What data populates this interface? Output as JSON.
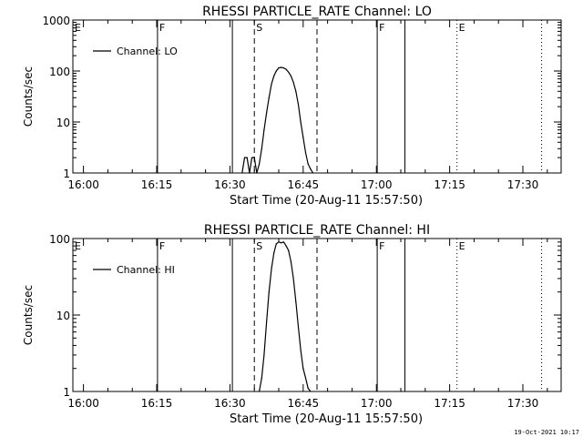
{
  "footer_date": "19-Oct-2021 10:17",
  "chart_data": [
    {
      "type": "line",
      "title": "RHESSI PARTICLE_RATE Channel: LO",
      "xlabel": "Start Time (20-Aug-11 15:57:50)",
      "ylabel": "Counts/sec",
      "xlim": [
        "15:57:50",
        "17:37:50"
      ],
      "ylim": [
        1,
        1000
      ],
      "yscale": "log",
      "x_ticks": [
        "16:00",
        "16:15",
        "16:30",
        "16:45",
        "17:00",
        "17:15",
        "17:30"
      ],
      "y_ticks": [
        "1",
        "10",
        "100",
        "1000"
      ],
      "legend_location": "top-left",
      "series": [
        {
          "name": "Channel: LO",
          "x": [
            "16:32:30",
            "16:33:00",
            "16:33:30",
            "16:34:00",
            "16:34:30",
            "16:35:00",
            "16:35:30",
            "16:36:00",
            "16:36:30",
            "16:37:00",
            "16:37:30",
            "16:38:00",
            "16:38:30",
            "16:39:00",
            "16:39:30",
            "16:40:00",
            "16:40:30",
            "16:41:00",
            "16:41:30",
            "16:42:00",
            "16:42:30",
            "16:43:00",
            "16:43:30",
            "16:44:00",
            "16:44:30",
            "16:45:00",
            "16:45:30",
            "16:46:00",
            "16:46:30",
            "16:47:00"
          ],
          "values": [
            1,
            2,
            2,
            1,
            2,
            2,
            1,
            1.5,
            3,
            7,
            15,
            30,
            55,
            80,
            100,
            115,
            118,
            115,
            108,
            95,
            80,
            60,
            40,
            22,
            10,
            5,
            2.5,
            1.5,
            1.2,
            1
          ]
        }
      ],
      "markers": [
        {
          "label": "E",
          "time": "15:57:50",
          "style": "none"
        },
        {
          "label": "F",
          "time": "16:15:10",
          "style": "solid"
        },
        {
          "label": "",
          "time": "16:30:30",
          "style": "solid"
        },
        {
          "label": "S",
          "time": "16:35:00",
          "style": "dashed"
        },
        {
          "label": "",
          "time": "16:47:50",
          "style": "dashed"
        },
        {
          "label": "F",
          "time": "17:00:10",
          "style": "solid"
        },
        {
          "label": "",
          "time": "17:05:50",
          "style": "solid"
        },
        {
          "label": "E",
          "time": "17:16:30",
          "style": "dotted"
        },
        {
          "label": "",
          "time": "17:33:50",
          "style": "dotted"
        }
      ]
    },
    {
      "type": "line",
      "title": "RHESSI PARTICLE_RATE Channel: HI",
      "xlabel": "Start Time (20-Aug-11 15:57:50)",
      "ylabel": "Counts/sec",
      "xlim": [
        "15:57:50",
        "17:37:50"
      ],
      "ylim": [
        1,
        100
      ],
      "yscale": "log",
      "x_ticks": [
        "16:00",
        "16:15",
        "16:30",
        "16:45",
        "17:00",
        "17:15",
        "17:30"
      ],
      "y_ticks": [
        "1",
        "10",
        "100"
      ],
      "legend_location": "top-left",
      "series": [
        {
          "name": "Channel: HI",
          "x": [
            "16:36:00",
            "16:36:30",
            "16:37:00",
            "16:37:30",
            "16:38:00",
            "16:38:30",
            "16:39:00",
            "16:39:30",
            "16:40:00",
            "16:40:30",
            "16:41:00",
            "16:41:30",
            "16:42:00",
            "16:42:30",
            "16:43:00",
            "16:43:30",
            "16:44:00",
            "16:44:30",
            "16:45:00",
            "16:45:30",
            "16:46:00",
            "16:46:30"
          ],
          "values": [
            1,
            1.5,
            3,
            8,
            20,
            40,
            65,
            85,
            90,
            88,
            90,
            80,
            70,
            50,
            30,
            15,
            7,
            3.5,
            2,
            1.5,
            1.1,
            1
          ]
        }
      ],
      "markers": [
        {
          "label": "E",
          "time": "15:57:50",
          "style": "none"
        },
        {
          "label": "F",
          "time": "16:15:10",
          "style": "solid"
        },
        {
          "label": "",
          "time": "16:30:30",
          "style": "solid"
        },
        {
          "label": "S",
          "time": "16:35:00",
          "style": "dashed"
        },
        {
          "label": "",
          "time": "16:47:50",
          "style": "dashed"
        },
        {
          "label": "F",
          "time": "17:00:10",
          "style": "solid"
        },
        {
          "label": "",
          "time": "17:05:50",
          "style": "solid"
        },
        {
          "label": "E",
          "time": "17:16:30",
          "style": "dotted"
        },
        {
          "label": "",
          "time": "17:33:50",
          "style": "dotted"
        }
      ]
    }
  ]
}
